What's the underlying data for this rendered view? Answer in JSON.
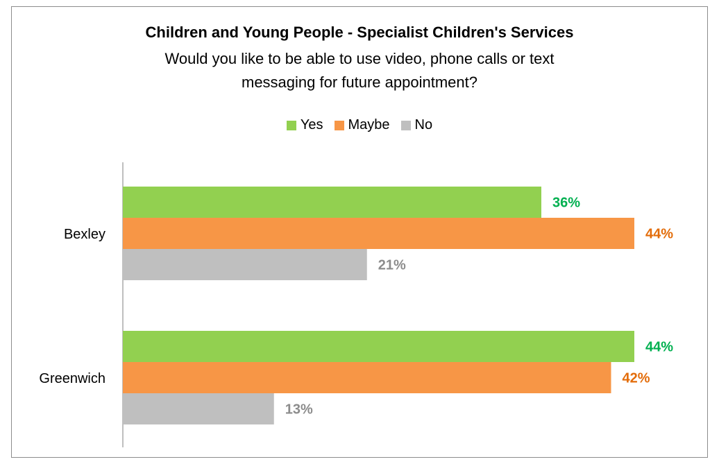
{
  "title": "Children and Young People - Specialist Children's Services",
  "subtitle_line1": "Would you like to be able to use video, phone calls or text",
  "subtitle_line2": "messaging for future appointment?",
  "colors": {
    "yes": "#92d050",
    "maybe": "#f79646",
    "no": "#bfbfbf",
    "yes_label": "#00b050",
    "maybe_label": "#e36c09",
    "no_label": "#8c8c8c"
  },
  "chart_data": {
    "type": "bar",
    "orientation": "horizontal",
    "categories": [
      "Bexley",
      "Greenwich"
    ],
    "series": [
      {
        "name": "Yes",
        "values": [
          36,
          44
        ],
        "labels": [
          "36%",
          "44%"
        ]
      },
      {
        "name": "Maybe",
        "values": [
          44,
          42
        ],
        "labels": [
          "44%",
          "42%"
        ]
      },
      {
        "name": "No",
        "values": [
          21,
          13
        ],
        "labels": [
          "21%",
          "13%"
        ]
      }
    ],
    "legend_position": "top",
    "grid": false
  }
}
